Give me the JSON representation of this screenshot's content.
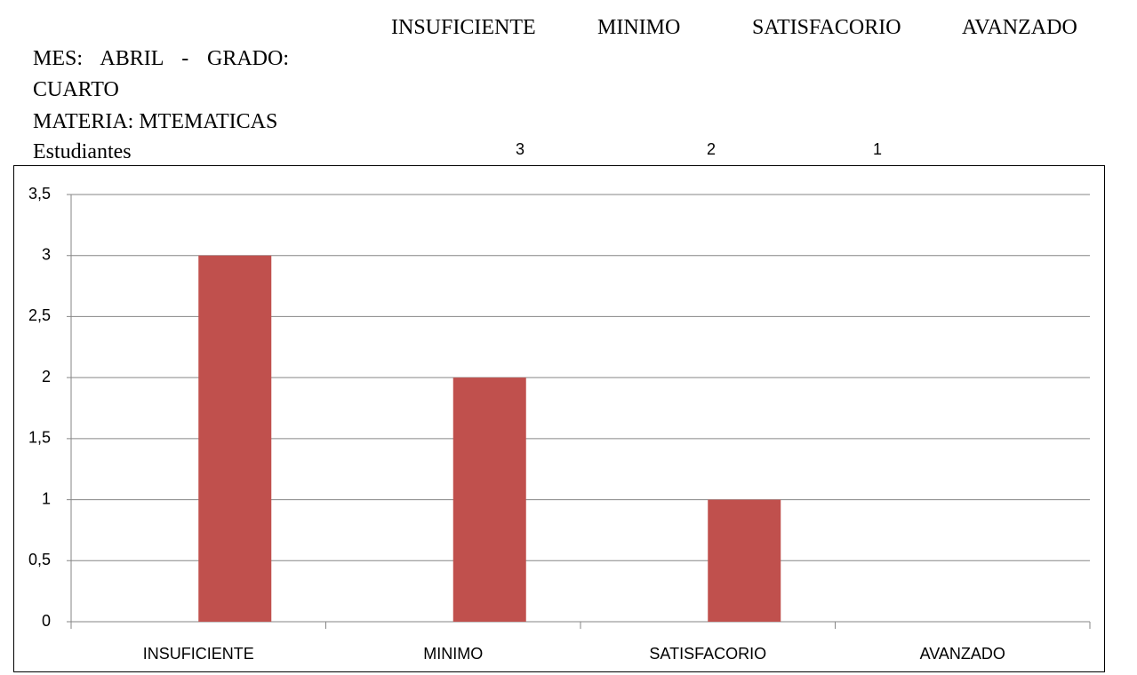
{
  "table": {
    "header": [
      "INSUFICIENTE",
      "MINIMO",
      "SATISFACORIO",
      "AVANZADO"
    ],
    "label": "MES: ABRIL - GRADO: CUARTO",
    "subject": "MATERIA: MTEMATICAS",
    "row_label": "Estudiantes",
    "row": [
      3,
      2,
      1,
      null
    ]
  },
  "chart_data": {
    "type": "bar",
    "categories": [
      "INSUFICIENTE",
      "MINIMO",
      "SATISFACORIO",
      "AVANZADO"
    ],
    "values": [
      3,
      2,
      1,
      null
    ],
    "color": "#c0504d",
    "ylim": [
      0,
      3.5
    ],
    "yticks": [
      0,
      {
        "value": 0.5,
        "label": "0,5"
      },
      1,
      {
        "value": 1.5,
        "label": "1,5"
      },
      2,
      {
        "value": 2.5,
        "label": "2,5"
      },
      3,
      {
        "value": 3.5,
        "label": "3,5"
      }
    ],
    "grid": true
  }
}
